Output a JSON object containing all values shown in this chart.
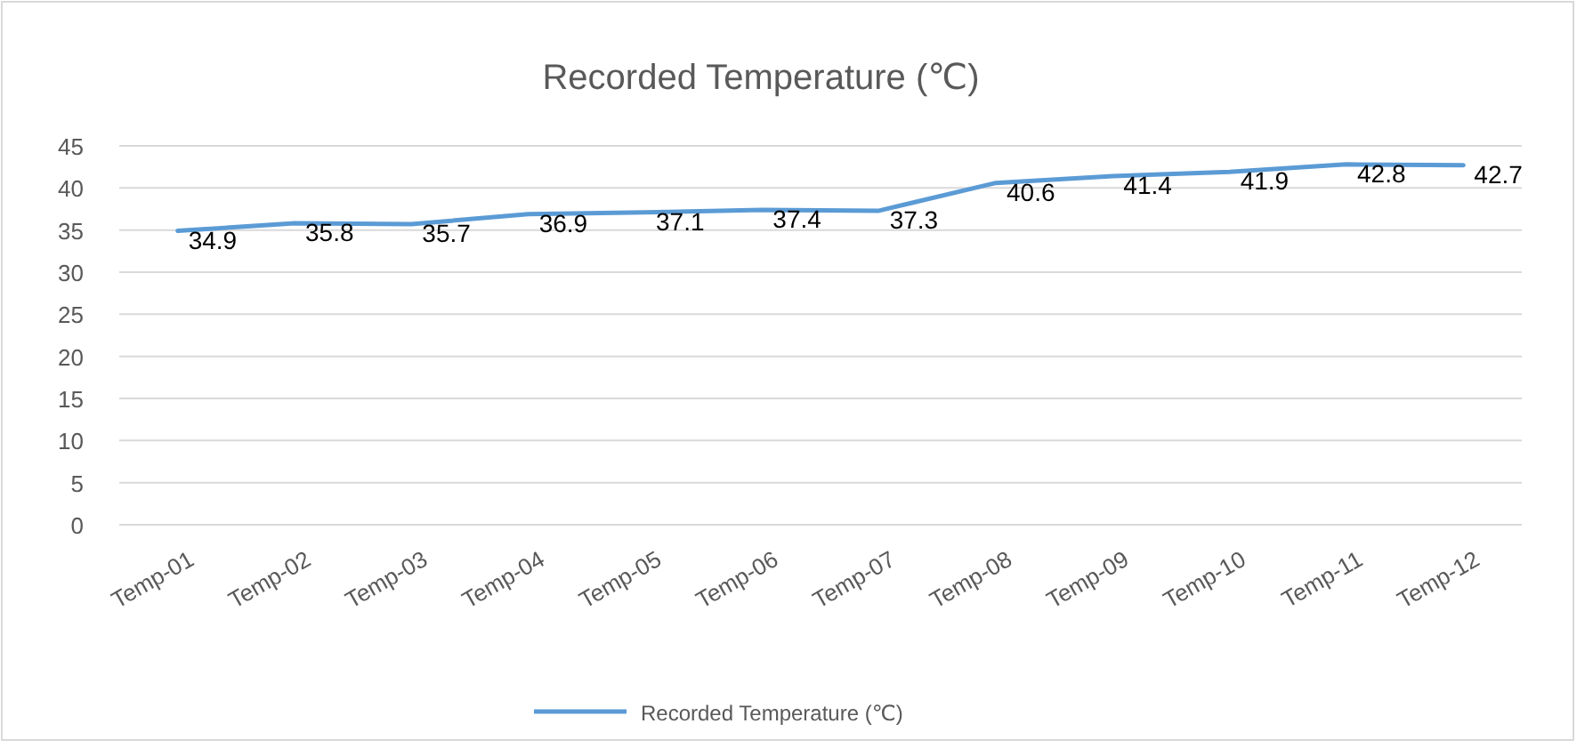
{
  "chart_data": {
    "type": "line",
    "title": "Recorded Temperature (℃)",
    "categories": [
      "Temp-01",
      "Temp-02",
      "Temp-03",
      "Temp-04",
      "Temp-05",
      "Temp-06",
      "Temp-07",
      "Temp-08",
      "Temp-09",
      "Temp-10",
      "Temp-11",
      "Temp-12"
    ],
    "series": [
      {
        "name": "Recorded Temperature (℃)",
        "color": "#5b9bd5",
        "values": [
          34.9,
          35.8,
          35.7,
          36.9,
          37.1,
          37.4,
          37.3,
          40.6,
          41.4,
          41.9,
          42.8,
          42.7
        ]
      }
    ],
    "ylim": [
      0,
      45
    ],
    "yticks": [
      0,
      5,
      10,
      15,
      20,
      25,
      30,
      35,
      40,
      45
    ],
    "grid": "y",
    "legend": "bottom",
    "data_labels": true,
    "marker": "none",
    "line_style": "solid"
  }
}
